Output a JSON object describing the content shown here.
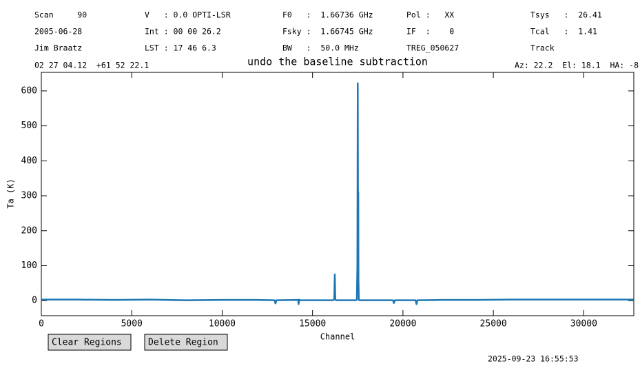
{
  "header": {
    "rows": [
      [
        "Scan     90",
        "V   : 0.0 OPTI-LSR",
        "F0   :  1.66736 GHz",
        "Pol :   XX",
        "Tsys   :  26.41"
      ],
      [
        "2005-06-28",
        "Int : 00 00 26.2",
        "Fsky :  1.66745 GHz",
        "IF  :    0",
        "Tcal   :  1.41"
      ],
      [
        "Jim Braatz",
        "LST : 17 46 6.3",
        "BW   :  50.0 MHz",
        "TREG_050627",
        "Track"
      ]
    ],
    "position": "02 27 04.12  +61 52 22.1",
    "pointing": "Az: 22.2  El: 18.1  HA: -8"
  },
  "chart_data": {
    "type": "line",
    "title": "undo the baseline subtraction",
    "xlabel": "Channel",
    "ylabel": "Ta (K)",
    "x": [
      0,
      1000,
      2000,
      4000,
      6000,
      8000,
      10000,
      12000,
      12900,
      12950,
      13000,
      14200,
      14230,
      14260,
      14300,
      16150,
      16200,
      16230,
      16260,
      16300,
      17400,
      17450,
      17480,
      17500,
      17520,
      17530,
      17540,
      17560,
      17600,
      18000,
      19450,
      19500,
      19550,
      20700,
      20750,
      20800,
      22000,
      24000,
      26000,
      28000,
      30000,
      32000,
      32767
    ],
    "series": [
      {
        "name": "Ta",
        "color": "#1f77b4",
        "values": [
          3,
          3,
          3,
          2,
          3,
          1,
          2,
          2,
          1,
          -8,
          1,
          2,
          -10,
          3,
          1,
          1,
          4,
          75,
          4,
          1,
          1,
          3,
          100,
          622,
          150,
          310,
          60,
          3,
          1,
          1,
          1,
          -7,
          1,
          1,
          -10,
          1,
          2,
          2,
          3,
          3,
          3,
          3,
          3
        ]
      }
    ],
    "xlim": [
      0,
      32768
    ],
    "ylim": [
      -43,
      653
    ],
    "xticks": [
      0,
      5000,
      10000,
      15000,
      20000,
      25000,
      30000
    ],
    "yticks": [
      0,
      100,
      200,
      300,
      400,
      500,
      600
    ]
  },
  "buttons": [
    "Clear Regions",
    "Delete Region"
  ],
  "timestamp": "2025-09-23 16:55:53"
}
